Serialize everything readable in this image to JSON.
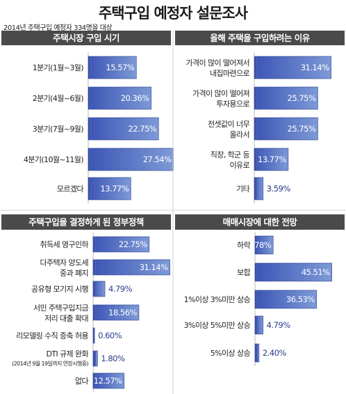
{
  "title": "주택구입 예정자 설문조사",
  "subtitle": "2014년 주택구입 예정자 334명을 대상",
  "colors": {
    "header": "#4a4a4a",
    "bar_light": "#6f8fd0",
    "bar_dark": "#4058b8",
    "bar_edge": "#2a3c8a"
  },
  "chart_data": [
    {
      "type": "bar",
      "title": "주택시장 구입 시기",
      "categories": [
        [
          "1분기(1월~3월)"
        ],
        [
          "2분기(4월~6월)"
        ],
        [
          "3분기(7월~9월)"
        ],
        [
          "4분기(10월~11월)"
        ],
        [
          "모르겠다"
        ]
      ],
      "values": [
        15.57,
        20.36,
        22.75,
        27.54,
        13.77
      ],
      "value_labels": [
        "15.57%",
        "20.36%",
        "22.75%",
        "27.54%",
        "13.77%"
      ]
    },
    {
      "type": "bar",
      "title": "올해 주택을 구입하려는 이유",
      "categories": [
        [
          "가격이 많이 떨어져서",
          "내집마련으로"
        ],
        [
          "가격이 많이 떨어져",
          "투자용으로"
        ],
        [
          "전셋값이 너무",
          "올라서"
        ],
        [
          "직장, 학군 등",
          "이유로"
        ],
        [
          "기타"
        ]
      ],
      "values": [
        31.14,
        25.75,
        25.75,
        13.77,
        3.59
      ],
      "value_labels": [
        "31.14%",
        "25.75%",
        "25.75%",
        "13.77%",
        "3.59%"
      ]
    },
    {
      "type": "bar",
      "title": "주택구입을 결정하게 된 정부정책",
      "categories": [
        [
          "취득세 영구인하"
        ],
        [
          "다주택자 양도세",
          "중과 폐지"
        ],
        [
          "공유형 모기지 시행"
        ],
        [
          "서민 주택구입지금",
          "저리 대출 확대"
        ],
        [
          "리모델링 수직 증축 허용"
        ],
        [
          "DTI 규제 완화",
          "(2014년 9월 19일까지 연장시행중)"
        ],
        [
          "없다"
        ]
      ],
      "values": [
        22.75,
        31.14,
        4.79,
        18.56,
        0.6,
        1.8,
        12.57
      ],
      "value_labels": [
        "22.75%",
        "31.14%",
        "4.79%",
        "18.56%",
        "0.60%",
        "1.80%",
        "12.57%"
      ]
    },
    {
      "type": "bar",
      "title": "매매시장에 대한 전망",
      "categories": [
        [
          "하락"
        ],
        [
          "보합"
        ],
        [
          "1%이상 3%미만 상승"
        ],
        [
          "3%이상 5%미만 상승"
        ],
        [
          "5%이상 상승"
        ]
      ],
      "values": [
        10.78,
        45.51,
        36.53,
        4.79,
        2.4
      ],
      "value_labels": [
        "10.78%",
        "45.51%",
        "36.53%",
        "4.79%",
        "2.40%"
      ]
    }
  ]
}
